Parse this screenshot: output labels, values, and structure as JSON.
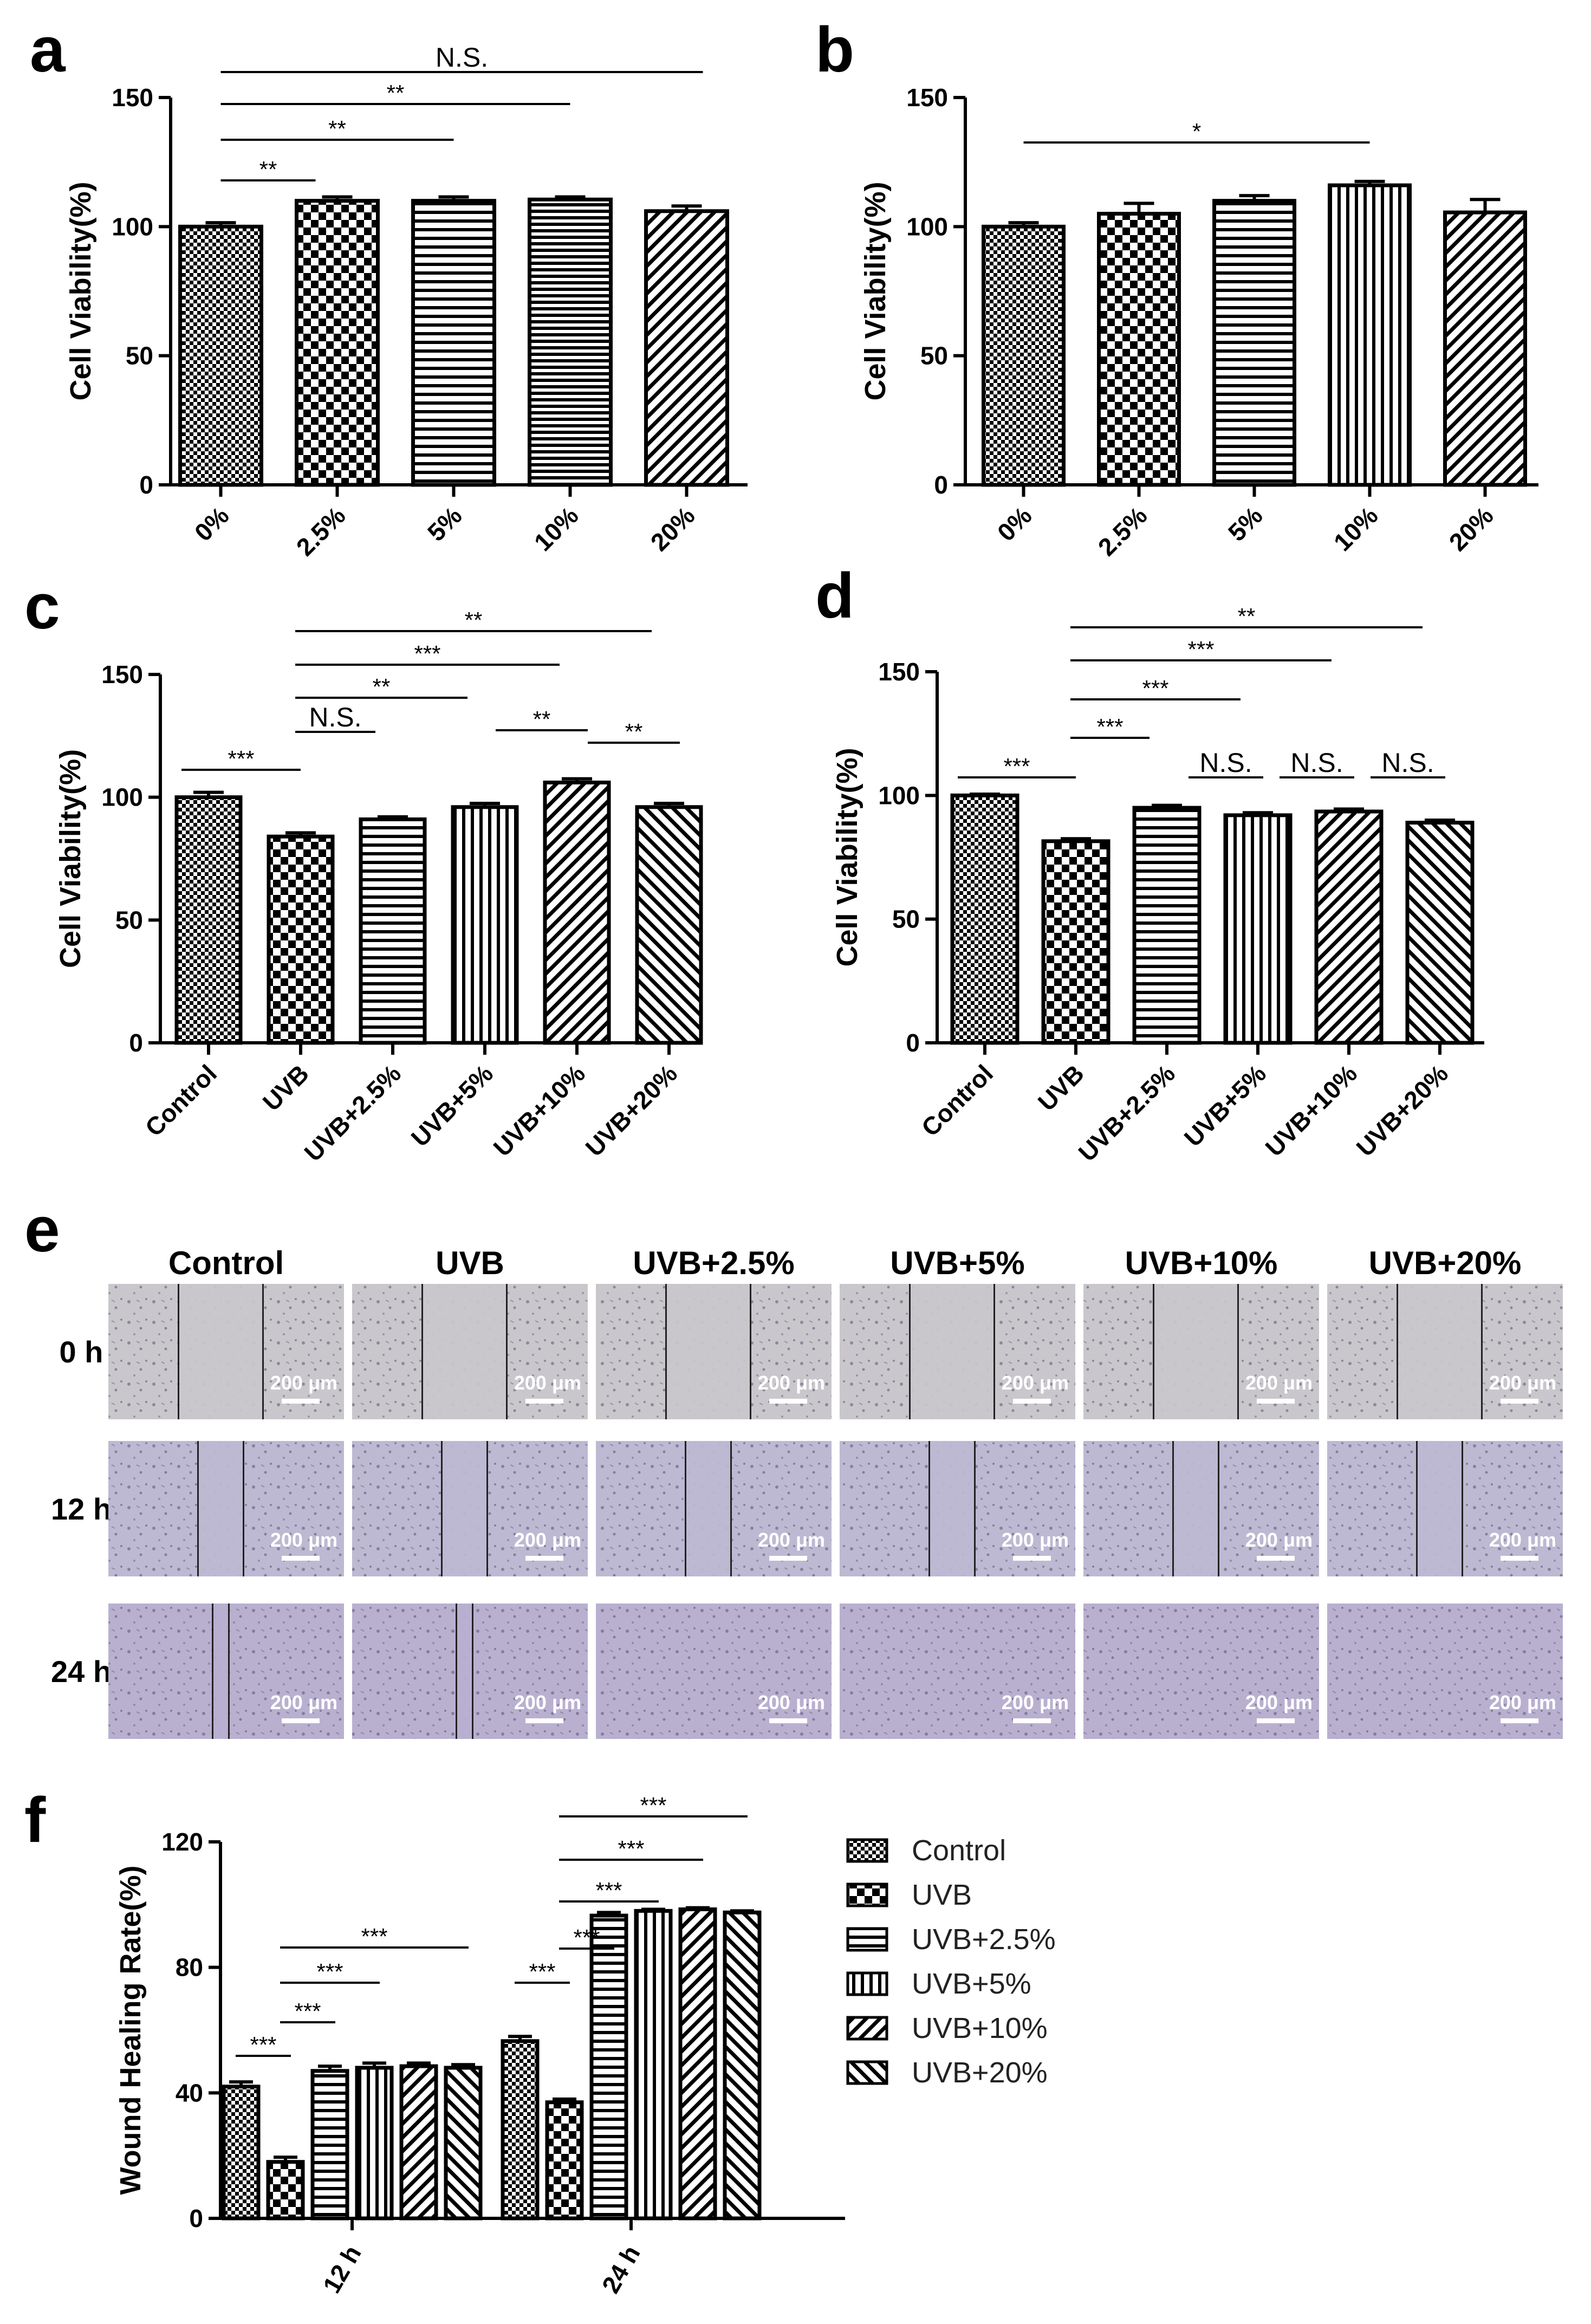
{
  "panels": {
    "a": "a",
    "b": "b",
    "c": "c",
    "d": "d",
    "e": "e",
    "f": "f"
  },
  "micrographs": {
    "columns": [
      "Control",
      "UVB",
      "UVB+2.5%",
      "UVB+5%",
      "UVB+10%",
      "UVB+20%"
    ],
    "rows": [
      "0 h",
      "12 h",
      "24 h"
    ],
    "scale_bar": "200 μm",
    "tints": [
      "#c9c7cc",
      "#bdb9d2",
      "#b9b0d0"
    ]
  },
  "chart_data": [
    {
      "id": "a",
      "type": "bar",
      "title": "",
      "ylabel": "Cell Viability(%)",
      "xlabel": "",
      "ylim": [
        0,
        150
      ],
      "yticks": [
        "0",
        "50",
        "100",
        "150"
      ],
      "categories": [
        "0%",
        "2.5%",
        "5%",
        "10%",
        "20%"
      ],
      "values": [
        100,
        110,
        110,
        110.5,
        106
      ],
      "errors": [
        1.5,
        1.5,
        1.5,
        1,
        2
      ],
      "patterns": [
        "check-fine",
        "check",
        "hline",
        "hline-tight",
        "diag"
      ],
      "significance": [
        {
          "from": 0,
          "to": 1,
          "label": "**"
        },
        {
          "from": 0,
          "to": 2,
          "label": "**"
        },
        {
          "from": 0,
          "to": 3,
          "label": "**"
        },
        {
          "from": 0,
          "to": 4,
          "label": "N.S."
        }
      ]
    },
    {
      "id": "b",
      "type": "bar",
      "title": "",
      "ylabel": "Cell Viability(%)",
      "xlabel": "",
      "ylim": [
        0,
        150
      ],
      "yticks": [
        "0",
        "50",
        "100",
        "150"
      ],
      "categories": [
        "0%",
        "2.5%",
        "5%",
        "10%",
        "20%"
      ],
      "values": [
        100,
        105,
        110,
        116,
        105.5
      ],
      "errors": [
        1.5,
        4,
        2,
        1.5,
        5
      ],
      "patterns": [
        "check-fine",
        "check",
        "hline",
        "vline",
        "diag"
      ],
      "significance": [
        {
          "from": 0,
          "to": 3,
          "label": "*"
        }
      ]
    },
    {
      "id": "c",
      "type": "bar",
      "title": "",
      "ylabel": "Cell Viability(%)",
      "xlabel": "",
      "ylim": [
        0,
        150
      ],
      "yticks": [
        "0",
        "50",
        "100",
        "150"
      ],
      "categories": [
        "Control",
        "UVB",
        "UVB+2.5%",
        "UVB+5%",
        "UVB+10%",
        "UVB+20%"
      ],
      "values": [
        100,
        84,
        91,
        96,
        106,
        96
      ],
      "errors": [
        2,
        1.5,
        1,
        1.5,
        1.5,
        1.5
      ],
      "patterns": [
        "check-fine",
        "check",
        "hline",
        "vline",
        "diag",
        "diag-back"
      ],
      "significance": [
        {
          "from": 0,
          "to": 1,
          "label": "***"
        },
        {
          "from": 1,
          "to": 2,
          "label": "N.S."
        },
        {
          "from": 1,
          "to": 3,
          "label": "**"
        },
        {
          "from": 1,
          "to": 4,
          "label": "***"
        },
        {
          "from": 1,
          "to": 5,
          "label": "**"
        },
        {
          "from": 3,
          "to": 4,
          "label": "**"
        },
        {
          "from": 4,
          "to": 5,
          "label": "**"
        }
      ]
    },
    {
      "id": "d",
      "type": "bar",
      "title": "",
      "ylabel": "Cell Viability(%)",
      "xlabel": "",
      "ylim": [
        0,
        150
      ],
      "yticks": [
        "0",
        "50",
        "100",
        "150"
      ],
      "categories": [
        "Control",
        "UVB",
        "UVB+2.5%",
        "UVB+5%",
        "UVB+10%",
        "UVB+20%"
      ],
      "values": [
        100,
        81.5,
        95,
        92,
        93.5,
        89
      ],
      "errors": [
        0.5,
        1,
        1,
        1,
        1,
        1
      ],
      "patterns": [
        "check-fine",
        "check",
        "hline",
        "vline",
        "diag",
        "diag-back"
      ],
      "significance": [
        {
          "from": 0,
          "to": 1,
          "label": "***"
        },
        {
          "from": 1,
          "to": 2,
          "label": "***"
        },
        {
          "from": 1,
          "to": 3,
          "label": "***"
        },
        {
          "from": 1,
          "to": 4,
          "label": "***"
        },
        {
          "from": 1,
          "to": 5,
          "label": "**"
        },
        {
          "from": 2,
          "to": 3,
          "label": "N.S."
        },
        {
          "from": 3,
          "to": 4,
          "label": "N.S."
        },
        {
          "from": 4,
          "to": 5,
          "label": "N.S."
        }
      ]
    },
    {
      "id": "f",
      "type": "bar",
      "title": "",
      "ylabel": "Wound Healing Rate(%)",
      "xlabel": "",
      "ylim": [
        0,
        120
      ],
      "yticks": [
        "0",
        "40",
        "80",
        "120"
      ],
      "categories": [
        "12 h",
        "24 h"
      ],
      "series": [
        {
          "name": "Control",
          "values": [
            42,
            56.5
          ],
          "errors": [
            1.5,
            1.5
          ],
          "pattern": "check-fine"
        },
        {
          "name": "UVB",
          "values": [
            18,
            37
          ],
          "errors": [
            1.5,
            1
          ],
          "pattern": "check"
        },
        {
          "name": "UVB+2.5%",
          "values": [
            47,
            96.5
          ],
          "errors": [
            1.5,
            1
          ],
          "pattern": "hline"
        },
        {
          "name": "UVB+5%",
          "values": [
            48,
            98
          ],
          "errors": [
            1.5,
            0.5
          ],
          "pattern": "vline"
        },
        {
          "name": "UVB+10%",
          "values": [
            48.5,
            98.5
          ],
          "errors": [
            1,
            0.5
          ],
          "pattern": "diag"
        },
        {
          "name": "UVB+20%",
          "values": [
            48,
            97.5
          ],
          "errors": [
            1,
            0.5
          ],
          "pattern": "diag-back"
        }
      ],
      "significance": [
        {
          "group": 0,
          "from": 0,
          "to": 1,
          "label": "***"
        },
        {
          "group": 0,
          "from": 1,
          "to": 2,
          "label": "***"
        },
        {
          "group": 0,
          "from": 1,
          "to": 3,
          "label": "***"
        },
        {
          "group": 0,
          "from": 1,
          "to": 5,
          "label": "***"
        },
        {
          "group": 1,
          "from": 0,
          "to": 1,
          "label": "***"
        },
        {
          "group": 1,
          "from": 1,
          "to": 2,
          "label": "***"
        },
        {
          "group": 1,
          "from": 1,
          "to": 3,
          "label": "***"
        },
        {
          "group": 1,
          "from": 1,
          "to": 4,
          "label": "***"
        },
        {
          "group": 1,
          "from": 1,
          "to": 5,
          "label": "***"
        }
      ],
      "legend_position": "right"
    }
  ]
}
